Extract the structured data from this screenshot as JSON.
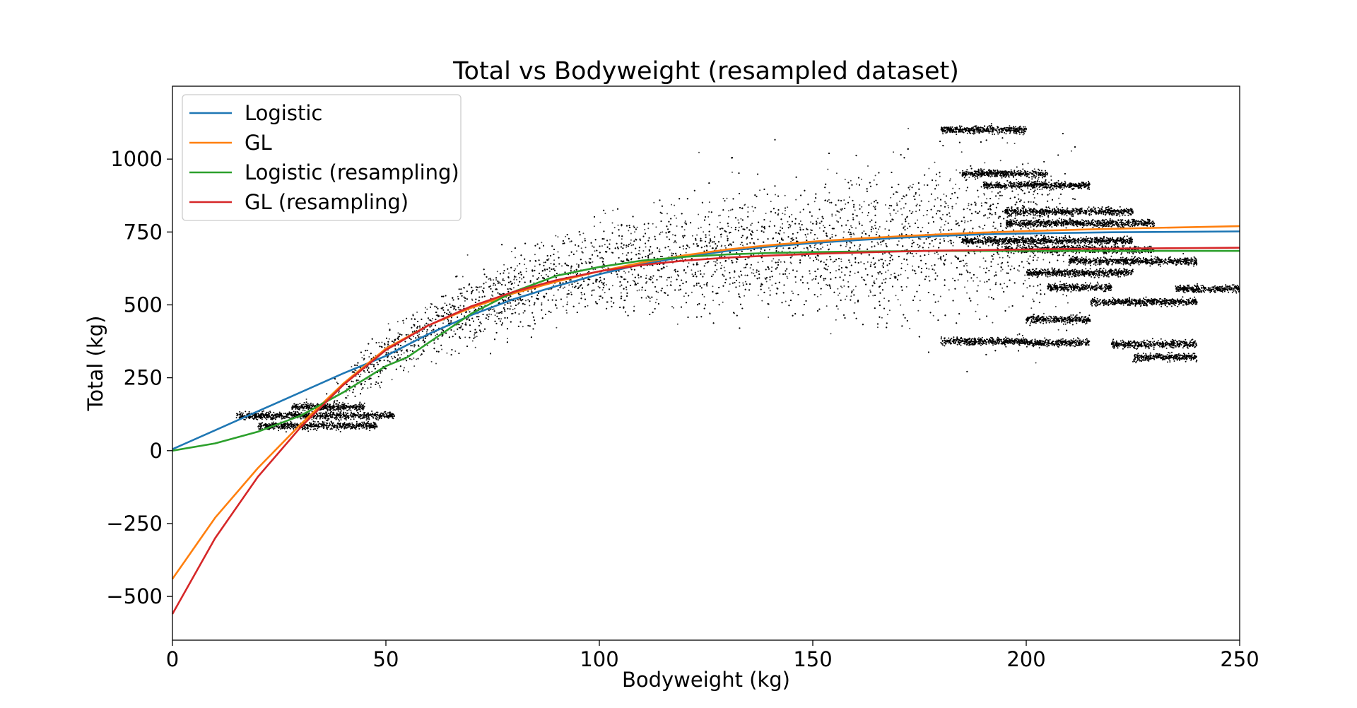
{
  "chart_data": {
    "type": "scatter",
    "title": "Total vs Bodyweight (resampled dataset)",
    "xlabel": "Bodyweight (kg)",
    "ylabel": "Total (kg)",
    "xlim": [
      0,
      250
    ],
    "ylim": [
      -650,
      1250
    ],
    "xticks": [
      0,
      50,
      100,
      150,
      200,
      250
    ],
    "xtick_labels": [
      "0",
      "50",
      "100",
      "150",
      "200",
      "250"
    ],
    "yticks": [
      -500,
      -250,
      0,
      250,
      500,
      750,
      1000
    ],
    "ytick_labels": [
      "−500",
      "−250",
      "0",
      "250",
      "500",
      "750",
      "1000"
    ],
    "grid": false,
    "legend_position": "top-left",
    "scatter": {
      "color": "#000000",
      "description_points_approx": "dense cloud of individual lifter totals vs bodyweight",
      "core_trend": [
        {
          "x": 20,
          "y": 120
        },
        {
          "x": 35,
          "y": 130
        },
        {
          "x": 50,
          "y": 330
        },
        {
          "x": 60,
          "y": 420
        },
        {
          "x": 75,
          "y": 520
        },
        {
          "x": 90,
          "y": 600
        },
        {
          "x": 110,
          "y": 650
        },
        {
          "x": 130,
          "y": 680
        },
        {
          "x": 150,
          "y": 700
        },
        {
          "x": 175,
          "y": 720
        },
        {
          "x": 200,
          "y": 740
        }
      ],
      "bands": [
        {
          "x0": 15,
          "x1": 52,
          "y": 120
        },
        {
          "x0": 20,
          "x1": 48,
          "y": 85
        },
        {
          "x0": 28,
          "x1": 45,
          "y": 150
        },
        {
          "x0": 180,
          "x1": 200,
          "y": 1100
        },
        {
          "x0": 185,
          "x1": 205,
          "y": 950
        },
        {
          "x0": 190,
          "x1": 215,
          "y": 910
        },
        {
          "x0": 195,
          "x1": 225,
          "y": 820
        },
        {
          "x0": 195,
          "x1": 230,
          "y": 780
        },
        {
          "x0": 185,
          "x1": 225,
          "y": 720
        },
        {
          "x0": 195,
          "x1": 230,
          "y": 690
        },
        {
          "x0": 210,
          "x1": 240,
          "y": 650
        },
        {
          "x0": 200,
          "x1": 225,
          "y": 610
        },
        {
          "x0": 205,
          "x1": 220,
          "y": 560
        },
        {
          "x0": 235,
          "x1": 250,
          "y": 555
        },
        {
          "x0": 215,
          "x1": 240,
          "y": 510
        },
        {
          "x0": 200,
          "x1": 215,
          "y": 450
        },
        {
          "x0": 180,
          "x1": 200,
          "y": 375
        },
        {
          "x0": 200,
          "x1": 215,
          "y": 370
        },
        {
          "x0": 220,
          "x1": 240,
          "y": 365
        },
        {
          "x0": 225,
          "x1": 240,
          "y": 320
        }
      ]
    },
    "series": [
      {
        "name": "Logistic",
        "color": "#1f77b4",
        "x": [
          0,
          10,
          20,
          30,
          40,
          50,
          60,
          70,
          80,
          90,
          100,
          110,
          120,
          130,
          140,
          150,
          160,
          170,
          180,
          190,
          200,
          210,
          220,
          230,
          240,
          250
        ],
        "y": [
          5,
          70,
          135,
          200,
          265,
          325,
          400,
          465,
          520,
          565,
          605,
          640,
          665,
          685,
          700,
          712,
          722,
          730,
          737,
          742,
          745,
          747,
          749,
          750,
          751,
          752
        ]
      },
      {
        "name": "GL",
        "color": "#ff7f0e",
        "x": [
          0,
          10,
          20,
          30,
          40,
          50,
          60,
          70,
          80,
          90,
          100,
          110,
          120,
          130,
          140,
          150,
          160,
          170,
          180,
          190,
          200,
          210,
          220,
          230,
          240,
          250
        ],
        "y": [
          -440,
          -230,
          -60,
          90,
          230,
          350,
          430,
          490,
          540,
          580,
          615,
          645,
          670,
          690,
          705,
          717,
          727,
          735,
          742,
          748,
          753,
          757,
          761,
          764,
          767,
          770
        ]
      },
      {
        "name": "Logistic (resampling)",
        "color": "#2ca02c",
        "x": [
          0,
          10,
          20,
          30,
          40,
          50,
          55,
          60,
          70,
          80,
          90,
          100,
          110,
          120,
          130,
          140,
          150,
          160,
          170,
          180,
          190,
          200,
          210,
          220,
          230,
          240,
          250
        ],
        "y": [
          0,
          25,
          65,
          120,
          200,
          290,
          320,
          370,
          470,
          545,
          600,
          630,
          652,
          665,
          673,
          678,
          681,
          683,
          684,
          685,
          685,
          685,
          685,
          685,
          685,
          685,
          685
        ]
      },
      {
        "name": "GL (resampling)",
        "color": "#d62728",
        "x": [
          0,
          10,
          20,
          30,
          40,
          50,
          60,
          70,
          80,
          90,
          100,
          110,
          120,
          130,
          140,
          150,
          160,
          170,
          180,
          190,
          200,
          210,
          220,
          230,
          240,
          250
        ],
        "y": [
          -560,
          -300,
          -90,
          80,
          225,
          345,
          430,
          495,
          545,
          585,
          615,
          637,
          652,
          662,
          669,
          675,
          679,
          683,
          686,
          688,
          690,
          692,
          693,
          694,
          695,
          696
        ]
      }
    ]
  }
}
